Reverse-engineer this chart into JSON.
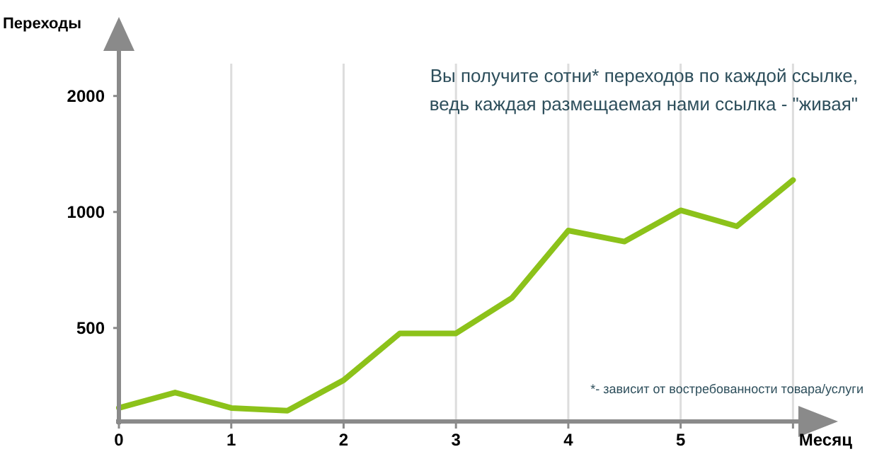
{
  "chart_data": {
    "type": "line",
    "ylabel": "Переходы",
    "xlabel": "Месяц",
    "x": [
      0,
      0.5,
      1,
      1.5,
      2,
      2.5,
      3,
      3.5,
      4,
      4.5,
      5,
      5.5,
      6
    ],
    "series": [
      {
        "color": "#8cc21a",
        "values": [
          310,
          340,
          310,
          305,
          366,
          484,
          484,
          599,
          895,
          838,
          1010,
          918,
          1210
        ]
      }
    ],
    "xlim": [
      0,
      6.3
    ],
    "xticks": [
      0,
      1,
      2,
      3,
      4,
      5,
      {
        "value": 6,
        "label": null
      }
    ],
    "ylim": [
      286,
      3100
    ],
    "yticks": [
      500,
      1000,
      2000
    ],
    "log": "y",
    "grid": "x",
    "marker": "none",
    "line_style": "solid",
    "annotations": [
      "Вы получите сотни* переходов по каждой ссылке,\nведь каждая размещаемая нами ссылка - \"живая\"",
      "*- зависит от востребованности товара/услуги"
    ]
  }
}
